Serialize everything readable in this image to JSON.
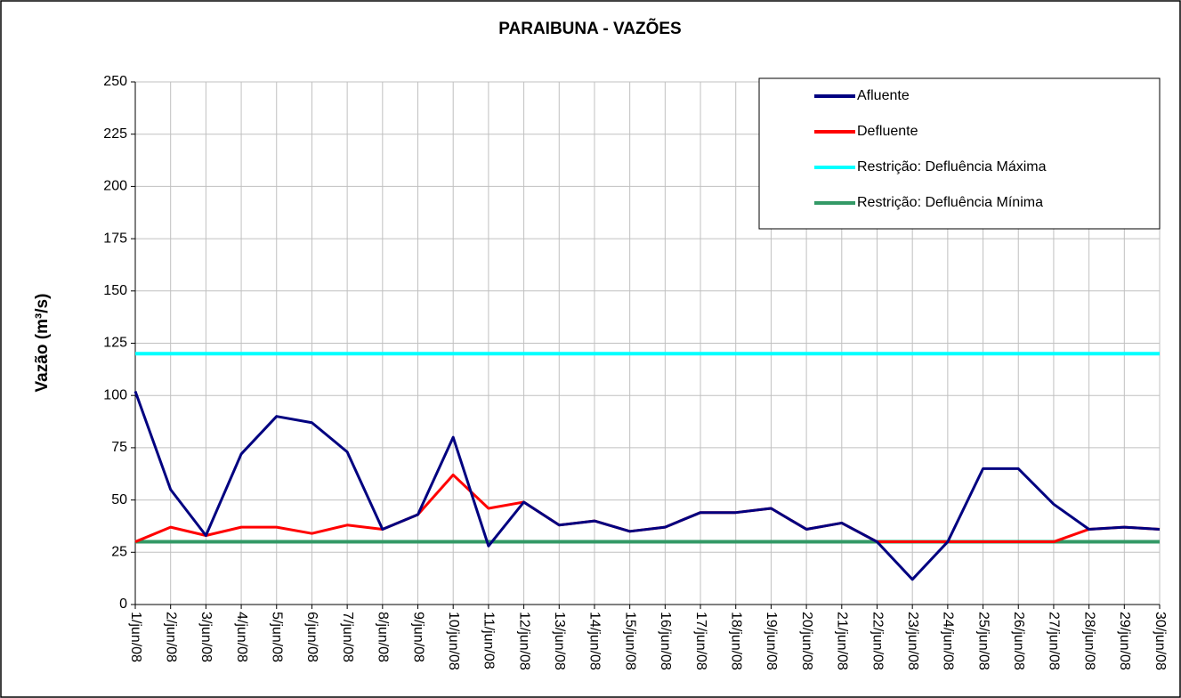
{
  "chart_data": {
    "type": "line",
    "title": "PARAIBUNA - VAZÕES",
    "y_label": "Vazão (m³/s)",
    "categories": [
      "1/jun/08",
      "2/jun/08",
      "3/jun/08",
      "4/jun/08",
      "5/jun/08",
      "6/jun/08",
      "7/jun/08",
      "8/jun/08",
      "9/jun/08",
      "10/jun/08",
      "11/jun/08",
      "12/jun/08",
      "13/jun/08",
      "14/jun/08",
      "15/jun/08",
      "16/jun/08",
      "17/jun/08",
      "18/jun/08",
      "19/jun/08",
      "20/jun/08",
      "21/jun/08",
      "22/jun/08",
      "23/jun/08",
      "24/jun/08",
      "25/jun/08",
      "26/jun/08",
      "27/jun/08",
      "28/jun/08",
      "29/jun/08",
      "30/jun/08"
    ],
    "series": [
      {
        "name": "Afluente",
        "color": "#000080",
        "values": [
          102,
          55,
          33,
          72,
          90,
          87,
          73,
          36,
          43,
          80,
          28,
          49,
          38,
          40,
          35,
          37,
          44,
          44,
          46,
          36,
          39,
          30,
          12,
          30,
          65,
          65,
          48,
          36,
          37,
          36
        ]
      },
      {
        "name": "Defluente",
        "color": "#ff0000",
        "values": [
          30,
          37,
          33,
          37,
          37,
          34,
          38,
          36,
          43,
          62,
          46,
          49,
          38,
          40,
          35,
          37,
          44,
          44,
          46,
          36,
          39,
          30,
          30,
          30,
          30,
          30,
          30,
          36,
          37,
          36
        ]
      },
      {
        "name": "Restrição: Defluência Máxima",
        "color": "#00ffff",
        "values": [
          120,
          120,
          120,
          120,
          120,
          120,
          120,
          120,
          120,
          120,
          120,
          120,
          120,
          120,
          120,
          120,
          120,
          120,
          120,
          120,
          120,
          120,
          120,
          120,
          120,
          120,
          120,
          120,
          120,
          120
        ]
      },
      {
        "name": "Restrição: Defluência Mínima",
        "color": "#339966",
        "values": [
          30,
          30,
          30,
          30,
          30,
          30,
          30,
          30,
          30,
          30,
          30,
          30,
          30,
          30,
          30,
          30,
          30,
          30,
          30,
          30,
          30,
          30,
          30,
          30,
          30,
          30,
          30,
          30,
          30,
          30
        ]
      }
    ],
    "ylim": [
      0,
      250
    ],
    "yticks": [
      0,
      25,
      50,
      75,
      100,
      125,
      150,
      175,
      200,
      225,
      250
    ],
    "grid": true,
    "legend": "top-right"
  }
}
